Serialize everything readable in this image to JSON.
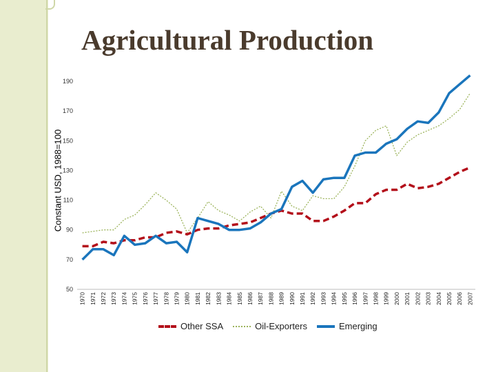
{
  "chart_data": {
    "type": "line",
    "title": "Agricultural Production",
    "xlabel": "",
    "ylabel": "Constant USD, 1988=100",
    "ylim": [
      50,
      190
    ],
    "yticks": [
      190,
      170,
      150,
      130,
      110,
      90,
      70,
      50
    ],
    "categories": [
      "1970",
      "1971",
      "1972",
      "1973",
      "1974",
      "1975",
      "1976",
      "1977",
      "1978",
      "1979",
      "1980",
      "1981",
      "1982",
      "1983",
      "1984",
      "1985",
      "1986",
      "1987",
      "1988",
      "1989",
      "1990",
      "1991",
      "1992",
      "1993",
      "1994",
      "1995",
      "1996",
      "1997",
      "1998",
      "1999",
      "2000",
      "2001",
      "2002",
      "2003",
      "2004",
      "2005",
      "2006",
      "2007"
    ],
    "series": [
      {
        "name": "Other SSA",
        "color": "#b30f1a",
        "style": "dashed",
        "values": [
          79,
          79,
          82,
          81,
          83,
          83,
          85,
          85,
          88,
          89,
          87,
          90,
          91,
          91,
          93,
          94,
          95,
          98,
          101,
          103,
          101,
          101,
          96,
          96,
          99,
          103,
          108,
          108,
          114,
          117,
          117,
          121,
          118,
          119,
          121,
          125,
          129,
          132
        ]
      },
      {
        "name": "Oil-Exporters",
        "color": "#9bb35a",
        "style": "dotted",
        "values": [
          88,
          89,
          90,
          90,
          97,
          100,
          107,
          115,
          110,
          104,
          88,
          98,
          109,
          103,
          100,
          96,
          102,
          106,
          98,
          116,
          106,
          103,
          113,
          111,
          111,
          119,
          133,
          150,
          157,
          160,
          140,
          149,
          154,
          157,
          160,
          165,
          171,
          182
        ]
      },
      {
        "name": "Emerging",
        "color": "#1a75bc",
        "style": "solid",
        "values": [
          70,
          77,
          77,
          73,
          86,
          80,
          81,
          86,
          81,
          82,
          75,
          98,
          96,
          94,
          90,
          90,
          91,
          95,
          101,
          104,
          119,
          123,
          115,
          124,
          125,
          125,
          140,
          142,
          142,
          148,
          151,
          158,
          163,
          162,
          169,
          182,
          188,
          194
        ]
      }
    ],
    "legend_position": "bottom"
  }
}
